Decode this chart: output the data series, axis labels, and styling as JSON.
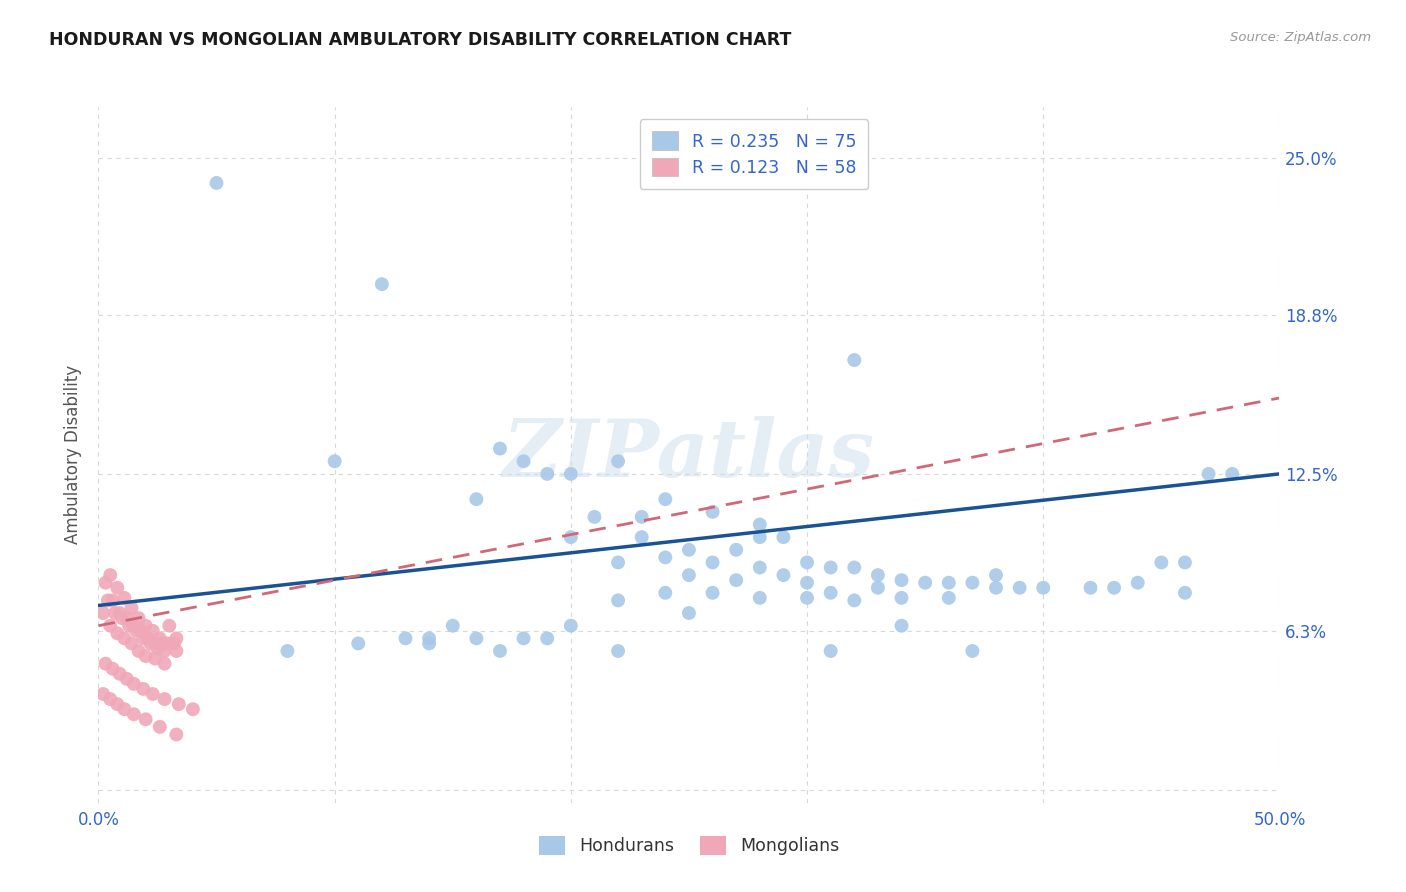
{
  "title": "HONDURAN VS MONGOLIAN AMBULATORY DISABILITY CORRELATION CHART",
  "source": "Source: ZipAtlas.com",
  "ylabel": "Ambulatory Disability",
  "xlim": [
    0.0,
    0.5
  ],
  "ylim": [
    -0.005,
    0.27
  ],
  "xticks": [
    0.0,
    0.1,
    0.2,
    0.3,
    0.4,
    0.5
  ],
  "xticklabels": [
    "0.0%",
    "",
    "",
    "",
    "",
    "50.0%"
  ],
  "ytick_positions": [
    0.0,
    0.063,
    0.125,
    0.188,
    0.25
  ],
  "ytick_labels": [
    "",
    "6.3%",
    "12.5%",
    "18.8%",
    "25.0%"
  ],
  "background_color": "#ffffff",
  "grid_color": "#d8d8d8",
  "honduran_color": "#a8c8e8",
  "mongolian_color": "#f0a8b8",
  "honduran_line_color": "#1a5296",
  "mongolian_line_color": "#d06878",
  "honduran_R": 0.235,
  "honduran_N": 75,
  "mongolian_R": 0.123,
  "mongolian_N": 58,
  "label_color": "#3366cc",
  "watermark": "ZIPatlas",
  "honduran_x": [
    0.05,
    0.12,
    0.1,
    0.32,
    0.17,
    0.18,
    0.2,
    0.22,
    0.16,
    0.19,
    0.24,
    0.23,
    0.26,
    0.28,
    0.2,
    0.21,
    0.23,
    0.25,
    0.27,
    0.29,
    0.22,
    0.24,
    0.26,
    0.3,
    0.28,
    0.31,
    0.29,
    0.32,
    0.33,
    0.25,
    0.27,
    0.3,
    0.34,
    0.35,
    0.36,
    0.38,
    0.33,
    0.31,
    0.37,
    0.39,
    0.4,
    0.22,
    0.24,
    0.26,
    0.28,
    0.3,
    0.32,
    0.34,
    0.36,
    0.38,
    0.42,
    0.44,
    0.46,
    0.48,
    0.43,
    0.46,
    0.15,
    0.18,
    0.2,
    0.14,
    0.13,
    0.17,
    0.08,
    0.11,
    0.14,
    0.16,
    0.19,
    0.22,
    0.25,
    0.28,
    0.31,
    0.34,
    0.37,
    0.45,
    0.47
  ],
  "honduran_y": [
    0.24,
    0.2,
    0.13,
    0.17,
    0.135,
    0.13,
    0.125,
    0.13,
    0.115,
    0.125,
    0.115,
    0.108,
    0.11,
    0.105,
    0.1,
    0.108,
    0.1,
    0.095,
    0.095,
    0.1,
    0.09,
    0.092,
    0.09,
    0.09,
    0.088,
    0.088,
    0.085,
    0.088,
    0.085,
    0.085,
    0.083,
    0.082,
    0.083,
    0.082,
    0.082,
    0.085,
    0.08,
    0.078,
    0.082,
    0.08,
    0.08,
    0.075,
    0.078,
    0.078,
    0.076,
    0.076,
    0.075,
    0.076,
    0.076,
    0.08,
    0.08,
    0.082,
    0.078,
    0.125,
    0.08,
    0.09,
    0.065,
    0.06,
    0.065,
    0.06,
    0.06,
    0.055,
    0.055,
    0.058,
    0.058,
    0.06,
    0.06,
    0.055,
    0.07,
    0.1,
    0.055,
    0.065,
    0.055,
    0.09,
    0.125
  ],
  "mongolian_x": [
    0.003,
    0.006,
    0.009,
    0.012,
    0.015,
    0.018,
    0.021,
    0.024,
    0.027,
    0.03,
    0.005,
    0.008,
    0.011,
    0.014,
    0.017,
    0.02,
    0.023,
    0.026,
    0.029,
    0.033,
    0.004,
    0.007,
    0.01,
    0.013,
    0.016,
    0.019,
    0.022,
    0.025,
    0.028,
    0.032,
    0.002,
    0.005,
    0.008,
    0.011,
    0.014,
    0.017,
    0.02,
    0.024,
    0.028,
    0.033,
    0.003,
    0.006,
    0.009,
    0.012,
    0.015,
    0.019,
    0.023,
    0.028,
    0.034,
    0.04,
    0.002,
    0.005,
    0.008,
    0.011,
    0.015,
    0.02,
    0.026,
    0.033
  ],
  "mongolian_y": [
    0.082,
    0.075,
    0.07,
    0.068,
    0.065,
    0.063,
    0.06,
    0.058,
    0.058,
    0.065,
    0.085,
    0.08,
    0.076,
    0.072,
    0.068,
    0.065,
    0.063,
    0.06,
    0.058,
    0.06,
    0.075,
    0.07,
    0.068,
    0.065,
    0.063,
    0.06,
    0.058,
    0.056,
    0.055,
    0.058,
    0.07,
    0.065,
    0.062,
    0.06,
    0.058,
    0.055,
    0.053,
    0.052,
    0.05,
    0.055,
    0.05,
    0.048,
    0.046,
    0.044,
    0.042,
    0.04,
    0.038,
    0.036,
    0.034,
    0.032,
    0.038,
    0.036,
    0.034,
    0.032,
    0.03,
    0.028,
    0.025,
    0.022
  ],
  "honduran_line_x": [
    0.0,
    0.5
  ],
  "honduran_line_y": [
    0.073,
    0.125
  ],
  "mongolian_line_x": [
    0.0,
    0.5
  ],
  "mongolian_line_y": [
    0.065,
    0.155
  ]
}
